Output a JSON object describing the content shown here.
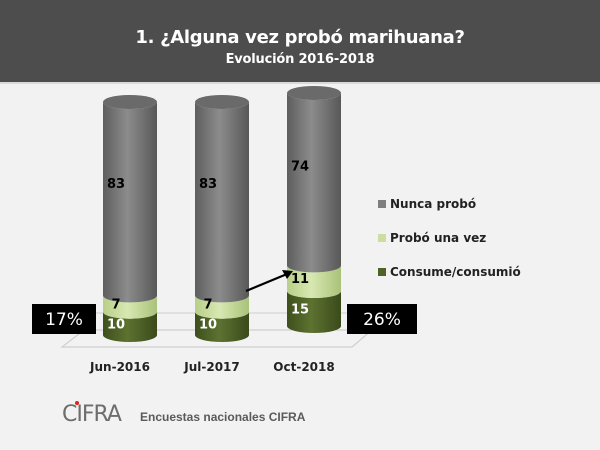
{
  "header": {
    "title": "1.   ¿Alguna vez probó marihuana?",
    "subtitle": "Evolución 2016-2018"
  },
  "chart_data": {
    "type": "bar",
    "stacked": true,
    "style": "3d-cylinder",
    "title": "1. ¿Alguna vez probó marihuana?",
    "subtitle": "Evolución 2016-2018",
    "categories": [
      "Jun-2016",
      "Jul-2017",
      "Oct-2018"
    ],
    "series": [
      {
        "name": "Consume/consumió",
        "color": "#4f6228",
        "label_color": "#ffffff",
        "values": [
          10,
          10,
          15
        ]
      },
      {
        "name": "Probó una vez",
        "color": "#c9dea0",
        "label_color": "#000000",
        "values": [
          7,
          7,
          11
        ]
      },
      {
        "name": "Nunca probó",
        "color": "#7f7f7f",
        "label_color": "#000000",
        "values": [
          83,
          83,
          74
        ]
      }
    ],
    "ylim": [
      0,
      100
    ],
    "legend_position": "right",
    "annotations": [
      {
        "text": "17%",
        "category": "Jun-2016",
        "side": "left"
      },
      {
        "text": "26%",
        "category": "Oct-2018",
        "side": "right"
      },
      {
        "text": "arrow",
        "from_category": "Jul-2017",
        "to_category": "Oct-2018"
      }
    ]
  },
  "footer": {
    "logo_text": "CIFRA",
    "source": "Encuestas nacionales CIFRA"
  }
}
